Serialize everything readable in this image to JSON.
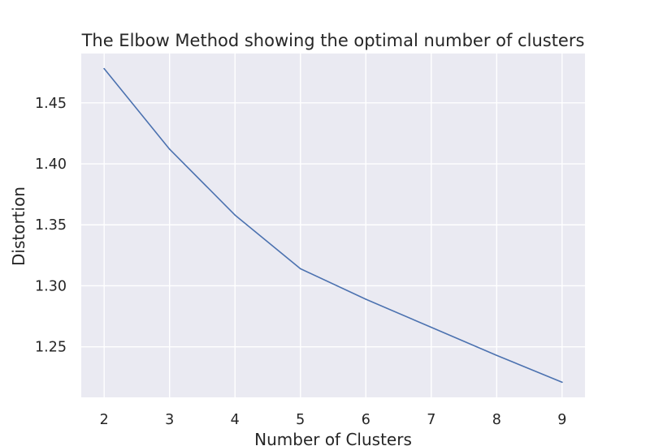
{
  "chart_data": {
    "type": "line",
    "title": "The Elbow Method showing the optimal number of clusters",
    "xlabel": "Number of Clusters",
    "ylabel": "Distortion",
    "x": [
      2,
      3,
      4,
      5,
      6,
      7,
      8,
      9
    ],
    "series": [
      {
        "values": [
          1.478,
          1.412,
          1.358,
          1.314,
          1.289,
          1.266,
          1.243,
          1.221
        ],
        "color": "#4c72b0"
      }
    ],
    "xticks": [
      2,
      3,
      4,
      5,
      6,
      7,
      8,
      9
    ],
    "yticks": [
      1.25,
      1.3,
      1.35,
      1.4,
      1.45
    ],
    "ytick_labels": [
      "1.25",
      "1.30",
      "1.35",
      "1.40",
      "1.45"
    ],
    "xlim": [
      1.65,
      9.35
    ],
    "ylim": [
      1.2086,
      1.4904
    ],
    "grid": true,
    "background_color": "#eaeaf2",
    "grid_color": "#ffffff"
  }
}
